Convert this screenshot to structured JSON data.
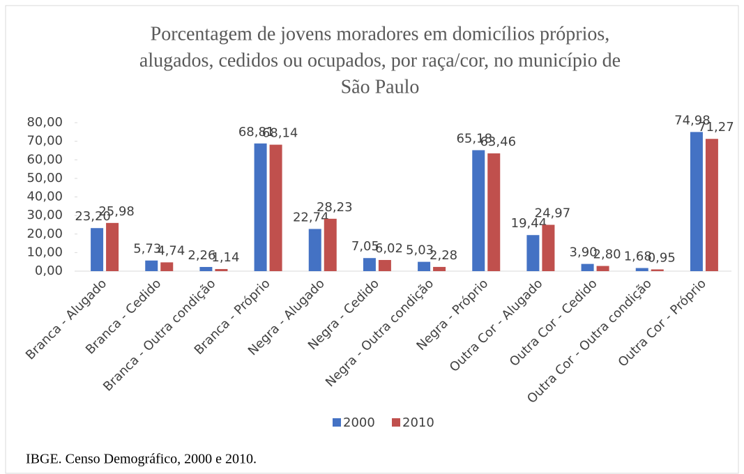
{
  "chart_data": {
    "type": "bar",
    "title": [
      "Porcentagem de jovens moradores em domicílios próprios,",
      "alugados, cedidos ou ocupados, por raça/cor, no município de",
      "São Paulo"
    ],
    "categories": [
      "Branca - Alugado",
      "Branca - Cedido",
      "Branca - Outra condição",
      "Branca - Próprio",
      "Negra - Alugado",
      "Negra - Cedido",
      "Negra - Outra condição",
      "Negra - Próprio",
      "Outra Cor - Alugado",
      "Outra Cor - Cedido",
      "Outra Cor - Outra condição",
      "Outra Cor - Próprio"
    ],
    "series": [
      {
        "name": "2000",
        "color": "#4472c4",
        "values": [
          23.2,
          5.73,
          2.26,
          68.81,
          22.74,
          7.05,
          5.03,
          65.18,
          19.44,
          3.9,
          1.68,
          74.98
        ],
        "value_labels": [
          "23,20",
          "5,73",
          "2,26",
          "68,81",
          "22,74",
          "7,05",
          "5,03",
          "65,18",
          "19,44",
          "3,90",
          "1,68",
          "74,98"
        ]
      },
      {
        "name": "2010",
        "color": "#c0504d",
        "values": [
          25.98,
          4.74,
          1.14,
          68.14,
          28.23,
          6.02,
          2.28,
          63.46,
          24.97,
          2.8,
          0.95,
          71.27
        ],
        "value_labels": [
          "25,98",
          "4,74",
          "1,14",
          "68,14",
          "28,23",
          "6,02",
          "2,28",
          "63,46",
          "24,97",
          "2,80",
          "0,95",
          "71,27"
        ]
      }
    ],
    "ylim": [
      0,
      80
    ],
    "yticks": [
      {
        "value": 0,
        "label": "0,00"
      },
      {
        "value": 10,
        "label": "10,00"
      },
      {
        "value": 20,
        "label": "20,00"
      },
      {
        "value": 30,
        "label": "30,00"
      },
      {
        "value": 40,
        "label": "40,00"
      },
      {
        "value": 50,
        "label": "50,00"
      },
      {
        "value": 60,
        "label": "60,00"
      },
      {
        "value": 70,
        "label": "70,00"
      },
      {
        "value": 80,
        "label": "80,00"
      }
    ],
    "legend": "bottom",
    "source": "IBGE. Censo Demográfico, 2000 e 2010."
  }
}
